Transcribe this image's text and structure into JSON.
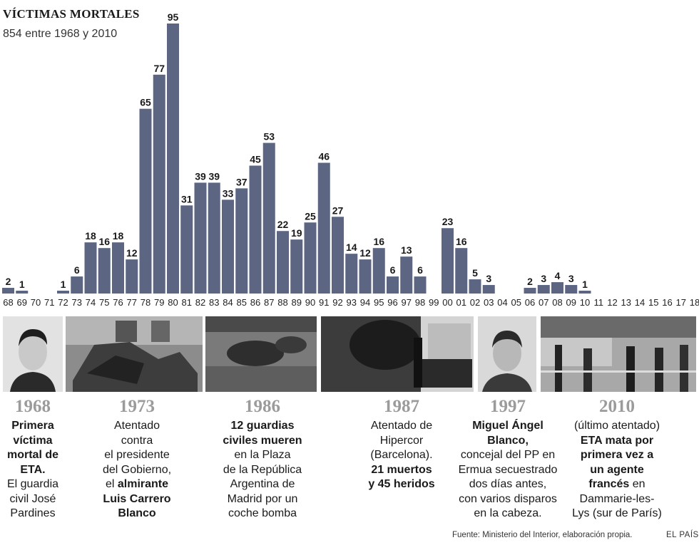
{
  "header": {
    "title": "VÍCTIMAS MORTALES",
    "subtitle": "854 entre 1968 y 2010"
  },
  "chart_data": {
    "type": "bar",
    "title": "VÍCTIMAS MORTALES",
    "subtitle": "854 entre 1968 y 2010",
    "categories": [
      "68",
      "69",
      "70",
      "71",
      "72",
      "73",
      "74",
      "75",
      "76",
      "77",
      "78",
      "79",
      "80",
      "81",
      "82",
      "83",
      "84",
      "85",
      "86",
      "87",
      "88",
      "89",
      "90",
      "91",
      "92",
      "93",
      "94",
      "95",
      "96",
      "97",
      "98",
      "99",
      "00",
      "01",
      "02",
      "03",
      "04",
      "05",
      "06",
      "07",
      "08",
      "09",
      "10",
      "11",
      "12",
      "13",
      "14",
      "15",
      "16",
      "17",
      "18"
    ],
    "values": [
      2,
      1,
      0,
      0,
      1,
      6,
      18,
      16,
      18,
      12,
      65,
      77,
      95,
      31,
      39,
      39,
      33,
      37,
      45,
      53,
      22,
      19,
      25,
      46,
      27,
      14,
      12,
      16,
      6,
      13,
      6,
      0,
      23,
      16,
      5,
      3,
      0,
      0,
      2,
      3,
      4,
      3,
      1,
      0,
      0,
      0,
      0,
      0,
      0,
      0,
      0
    ],
    "ylim": [
      0,
      95
    ],
    "grid": false,
    "bar_color": "#5c6683"
  },
  "events": [
    {
      "year": "1968",
      "lines": [
        [
          {
            "t": "Primera",
            "b": true
          }
        ],
        [
          {
            "t": "víctima",
            "b": true
          }
        ],
        [
          {
            "t": "mortal de",
            "b": true
          }
        ],
        [
          {
            "t": "ETA.",
            "b": true
          }
        ],
        [
          {
            "t": "El guardia",
            "b": false
          }
        ],
        [
          {
            "t": "civil José",
            "b": false
          }
        ],
        [
          {
            "t": "Pardines",
            "b": false
          }
        ]
      ]
    },
    {
      "year": "1973",
      "lines": [
        [
          {
            "t": "Atentado",
            "b": false
          }
        ],
        [
          {
            "t": "contra",
            "b": false
          }
        ],
        [
          {
            "t": "el presidente",
            "b": false
          }
        ],
        [
          {
            "t": "del Gobierno,",
            "b": false
          }
        ],
        [
          {
            "t": "el ",
            "b": false
          },
          {
            "t": "almirante",
            "b": true
          }
        ],
        [
          {
            "t": "Luis Carrero",
            "b": true
          }
        ],
        [
          {
            "t": "Blanco",
            "b": true
          }
        ]
      ]
    },
    {
      "year": "1986",
      "lines": [
        [
          {
            "t": "12 guardias",
            "b": true
          }
        ],
        [
          {
            "t": "civiles mueren",
            "b": true
          }
        ],
        [
          {
            "t": "en la Plaza",
            "b": false
          }
        ],
        [
          {
            "t": "de la República",
            "b": false
          }
        ],
        [
          {
            "t": "Argentina de",
            "b": false
          }
        ],
        [
          {
            "t": "Madrid por un",
            "b": false
          }
        ],
        [
          {
            "t": "coche bomba",
            "b": false
          }
        ]
      ]
    },
    {
      "year": "1987",
      "lines": [
        [
          {
            "t": "Atentado de",
            "b": false
          }
        ],
        [
          {
            "t": "Hipercor",
            "b": false
          }
        ],
        [
          {
            "t": "(Barcelona).",
            "b": false
          }
        ],
        [
          {
            "t": "21 muertos",
            "b": true
          }
        ],
        [
          {
            "t": "y 45 heridos",
            "b": true
          }
        ]
      ]
    },
    {
      "year": "1997",
      "lines": [
        [
          {
            "t": "Miguel Ángel",
            "b": true
          }
        ],
        [
          {
            "t": "Blanco,",
            "b": true
          }
        ],
        [
          {
            "t": "concejal del PP en",
            "b": false
          }
        ],
        [
          {
            "t": "Ermua secuestrado",
            "b": false
          }
        ],
        [
          {
            "t": "dos días antes,",
            "b": false
          }
        ],
        [
          {
            "t": "con varios disparos",
            "b": false
          }
        ],
        [
          {
            "t": "en la cabeza.",
            "b": false
          }
        ]
      ]
    },
    {
      "year": "2010",
      "lines": [
        [
          {
            "t": "(último atentado)",
            "b": false
          }
        ],
        [
          {
            "t": "ETA mata por",
            "b": true
          }
        ],
        [
          {
            "t": "primera vez a",
            "b": true
          }
        ],
        [
          {
            "t": "un agente",
            "b": true
          }
        ],
        [
          {
            "t": "francés",
            "b": true
          },
          {
            "t": " en",
            "b": false
          }
        ],
        [
          {
            "t": "Dammarie-les-",
            "b": false
          }
        ],
        [
          {
            "t": "Lys (sur de París)",
            "b": false
          }
        ]
      ]
    }
  ],
  "footer": {
    "source": "Fuente: Ministerio del Interior, elaboración propia.",
    "brand": "EL PAÍS"
  }
}
